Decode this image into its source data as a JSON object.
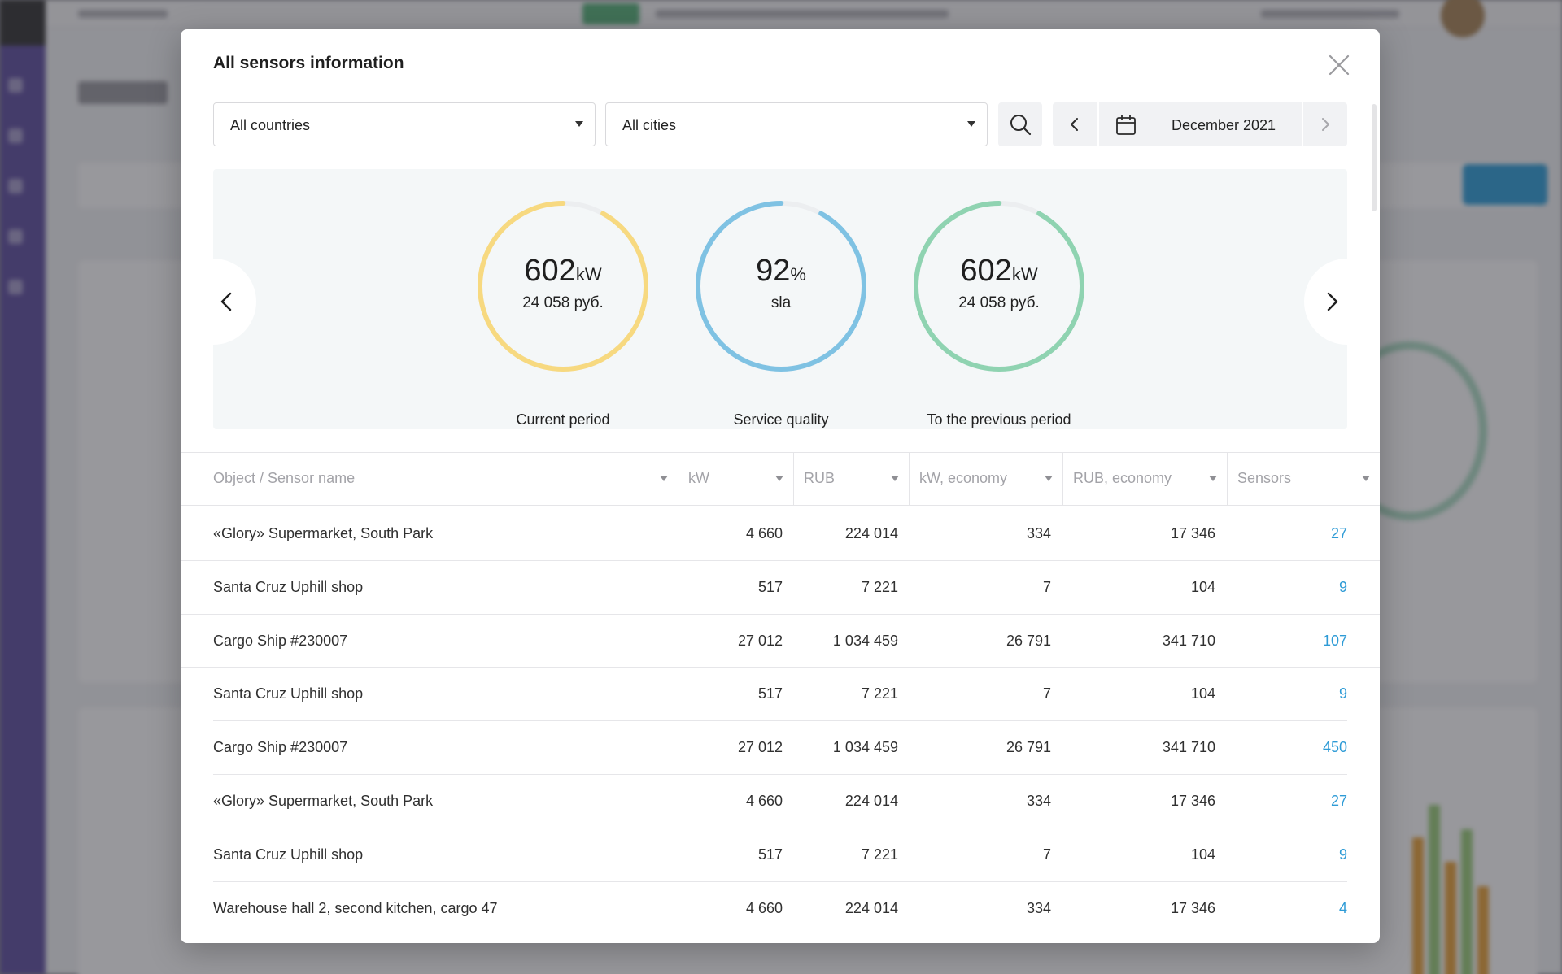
{
  "modal": {
    "title": "All sensors information"
  },
  "filters": {
    "country": "All countries",
    "city": "All cities",
    "date": "December 2021"
  },
  "icons": {
    "close": "close-icon",
    "search": "search-icon",
    "calendar": "calendar-icon",
    "prev": "chevron-left-icon",
    "next": "chevron-right-icon",
    "select_caret": "caret-down-icon"
  },
  "stats": [
    {
      "value": "602",
      "unit": "kW",
      "sub": "24 058 руб.",
      "label": "Current period",
      "color": "#f7d980",
      "progress": 0.92
    },
    {
      "value": "92",
      "unit": "%",
      "sub": "sla",
      "label": "Service quality",
      "color": "#7fc2e3",
      "progress": 0.92
    },
    {
      "value": "602",
      "unit": "kW",
      "sub": "24 058 руб.",
      "label": "To the previous period",
      "color": "#8fd3b1",
      "progress": 0.92
    }
  ],
  "table": {
    "columns": [
      "Object / Sensor name",
      "kW",
      "RUB",
      "kW, economy",
      "RUB, economy",
      "Sensors"
    ],
    "rows": [
      [
        "«Glory» Supermarket, South Park",
        "4 660",
        "224 014",
        "334",
        "17 346",
        "27"
      ],
      [
        "Santa Cruz Uphill shop",
        "517",
        "7 221",
        "7",
        "104",
        "9"
      ],
      [
        "Cargo Ship #230007",
        "27 012",
        "1 034 459",
        "26 791",
        "341 710",
        "107"
      ],
      [
        "Santa Cruz Uphill shop",
        "517",
        "7 221",
        "7",
        "104",
        "9"
      ],
      [
        "Cargo Ship #230007",
        "27 012",
        "1 034 459",
        "26 791",
        "341 710",
        "450"
      ],
      [
        "«Glory» Supermarket, South Park",
        "4 660",
        "224 014",
        "334",
        "17 346",
        "27"
      ],
      [
        "Santa Cruz Uphill shop",
        "517",
        "7 221",
        "7",
        "104",
        "9"
      ],
      [
        "Warehouse hall 2, second kitchen, cargo 47",
        "4 660",
        "224 014",
        "334",
        "17 346",
        "4"
      ]
    ]
  },
  "colors": {
    "link": "#2e9bd6",
    "panel_bg": "#f4f7f8",
    "sidebar": "#5f4fa0"
  }
}
